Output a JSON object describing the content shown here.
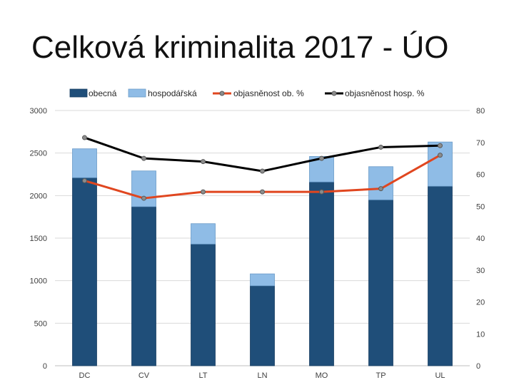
{
  "title": "Celková kriminalita 2017 - ÚO",
  "chart_data": {
    "type": "bar",
    "stacked": true,
    "categories": [
      "DC",
      "CV",
      "LT",
      "LN",
      "MO",
      "TP",
      "UL"
    ],
    "series": [
      {
        "name": "obecná",
        "kind": "bar",
        "axis": "left",
        "color": "#1f4e79",
        "values": [
          2210,
          1870,
          1430,
          940,
          2160,
          1950,
          2110
        ]
      },
      {
        "name": "hospodářská",
        "kind": "bar",
        "axis": "left",
        "color": "#8fbce6",
        "values": [
          340,
          420,
          240,
          140,
          300,
          390,
          520
        ]
      },
      {
        "name": "objasněnost ob. %",
        "kind": "line",
        "axis": "right",
        "color": "#e0461f",
        "values": [
          58,
          52.5,
          54.5,
          54.5,
          54.5,
          55.5,
          66
        ]
      },
      {
        "name": "objasněnost hosp. %",
        "kind": "line",
        "axis": "right",
        "color": "#000000",
        "values": [
          71.5,
          65,
          64,
          61,
          65,
          68.5,
          69
        ]
      }
    ],
    "y_left": {
      "min": 0,
      "max": 3000,
      "ticks": [
        0,
        500,
        1000,
        1500,
        2000,
        2500,
        3000
      ]
    },
    "y_right": {
      "min": 0,
      "max": 80,
      "ticks": [
        0,
        10,
        20,
        30,
        40,
        50,
        60,
        70,
        80
      ]
    },
    "grid": true,
    "legend_position": "top"
  }
}
